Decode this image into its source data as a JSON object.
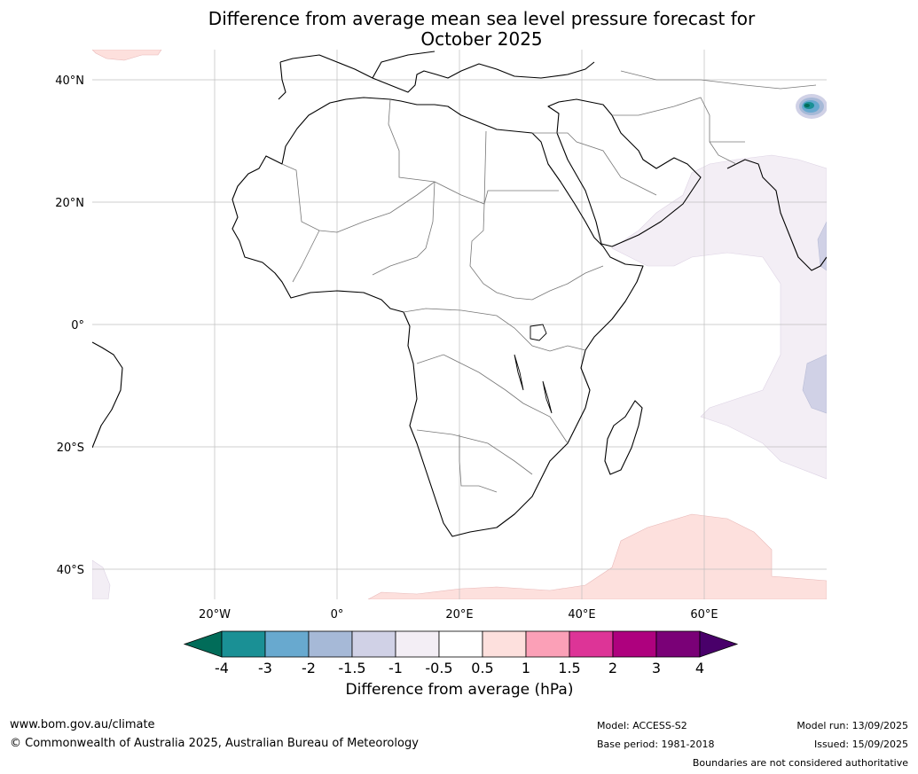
{
  "title": {
    "line1": "Difference from average mean sea level pressure forecast for",
    "line2": "October 2025"
  },
  "map": {
    "lat_ticks": [
      "40°N",
      "20°N",
      "0°",
      "20°S",
      "40°S"
    ],
    "lon_ticks": [
      "20°W",
      "0°",
      "20°E",
      "40°E",
      "60°E"
    ],
    "extent": {
      "lon": [
        -40,
        80
      ],
      "lat": [
        -45,
        45
      ]
    }
  },
  "colorbar": {
    "title": "Difference from average (hPa)",
    "ticks": [
      "-4",
      "-3",
      "-2",
      "-1.5",
      "-1",
      "-0.5",
      "0.5",
      "1",
      "1.5",
      "2",
      "3",
      "4"
    ],
    "colors": [
      "#1a9095",
      "#68a9cf",
      "#a6b9d7",
      "#d0d1e6",
      "#f3eef5",
      "#ffffff",
      "#fde0dd",
      "#fba0b7",
      "#dd3497",
      "#ae017e",
      "#7a0177"
    ],
    "under_color": "#016c59",
    "over_color": "#49006a"
  },
  "footer": {
    "website": "www.bom.gov.au/climate",
    "copyright": "© Commonwealth of Australia 2025, Australian Bureau of Meteorology",
    "model": "Model: ACCESS-S2",
    "base_period": "Base period: 1981-2018",
    "model_run": "Model run: 13/09/2025",
    "issued": "Issued: 15/09/2025",
    "disclaimer": "Boundaries are not considered authoritative"
  }
}
